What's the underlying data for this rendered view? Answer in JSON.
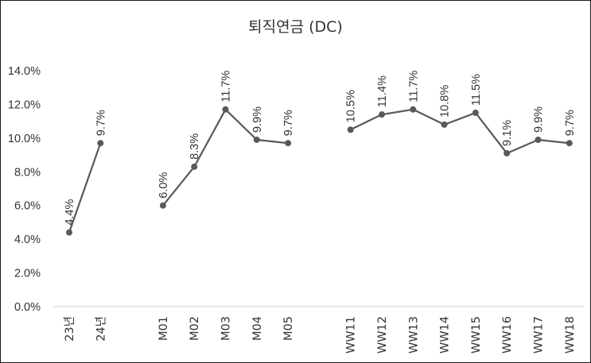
{
  "chart_data": {
    "type": "line",
    "title": "퇴직연금 (DC)",
    "xlabel": "",
    "ylabel": "",
    "ylim": [
      0,
      14
    ],
    "yticks": [
      "0.0%",
      "2.0%",
      "4.0%",
      "6.0%",
      "8.0%",
      "10.0%",
      "12.0%",
      "14.0%"
    ],
    "grid": false,
    "legend": "none",
    "line_color": "#595959",
    "groups": [
      {
        "categories": [
          "23년",
          "24년"
        ],
        "values": [
          4.4,
          9.7
        ],
        "labels": [
          "4.4%",
          "9.7%"
        ]
      },
      {
        "categories": [
          "M01",
          "M02",
          "M03",
          "M04",
          "M05"
        ],
        "values": [
          6.0,
          8.3,
          11.7,
          9.9,
          9.7
        ],
        "labels": [
          "6.0%",
          "8.3%",
          "11.7%",
          "9.9%",
          "9.7%"
        ]
      },
      {
        "categories": [
          "WW11",
          "WW12",
          "WW13",
          "WW14",
          "WW15",
          "WW16",
          "WW17",
          "WW18"
        ],
        "values": [
          10.5,
          11.4,
          11.7,
          10.8,
          11.5,
          9.1,
          9.9,
          9.7
        ],
        "labels": [
          "10.5%",
          "11.4%",
          "11.7%",
          "10.8%",
          "11.5%",
          "9.1%",
          "9.9%",
          "9.7%"
        ]
      }
    ]
  }
}
